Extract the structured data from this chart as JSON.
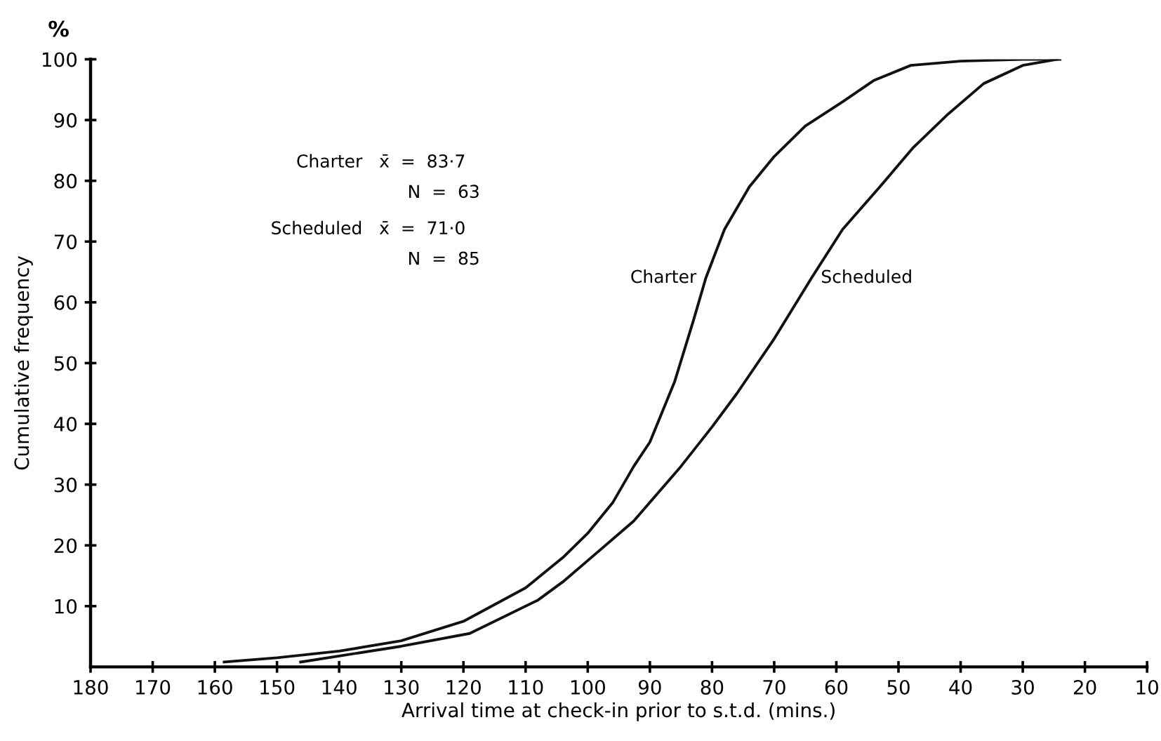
{
  "chart_data": {
    "type": "line",
    "xlabel": "Arrival time at check-in prior to s.t.d. (mins.)",
    "ylabel": "Cumulative frequency",
    "annotations": [
      "%",
      "Charter   x̄  =  83·7",
      "N  =  63",
      "Scheduled   x̄  =  71·0",
      "N  =  85"
    ],
    "xlim": [
      180,
      10
    ],
    "xticks": [
      180,
      170,
      160,
      150,
      140,
      130,
      120,
      110,
      100,
      90,
      80,
      70,
      60,
      50,
      40,
      30,
      20,
      10
    ],
    "ylim": [
      0,
      100
    ],
    "yticks": [
      10,
      20,
      30,
      40,
      50,
      60,
      70,
      80,
      90,
      100
    ],
    "grid": false,
    "legend": false,
    "marker": "none",
    "line_style": "solid",
    "series": [
      {
        "name": "Charter",
        "color": "#111111",
        "x": [
          158.5,
          150,
          140,
          130,
          120,
          110,
          104,
          100,
          96,
          92.6,
          90,
          86,
          83,
          81,
          78,
          74,
          70,
          65,
          59,
          54,
          48,
          40,
          30,
          24
        ],
        "values": [
          0.8,
          1.5,
          2.6,
          4.3,
          7.5,
          13,
          18,
          22,
          27,
          33,
          37,
          47,
          57,
          64,
          72,
          79,
          84,
          89,
          93,
          96.5,
          99,
          99.7,
          100,
          100
        ]
      },
      {
        "name": "Scheduled",
        "color": "#111111",
        "x": [
          146.2,
          140,
          130,
          119,
          108,
          104,
          100,
          92.6,
          85,
          80,
          76,
          70,
          64,
          59,
          53,
          47.6,
          42,
          36.3,
          30,
          24.4
        ],
        "values": [
          0.8,
          1.8,
          3.4,
          5.5,
          11,
          14,
          17.5,
          24,
          33,
          39.5,
          45,
          54,
          64,
          72,
          79,
          85.5,
          91,
          96,
          99,
          100
        ]
      }
    ]
  }
}
